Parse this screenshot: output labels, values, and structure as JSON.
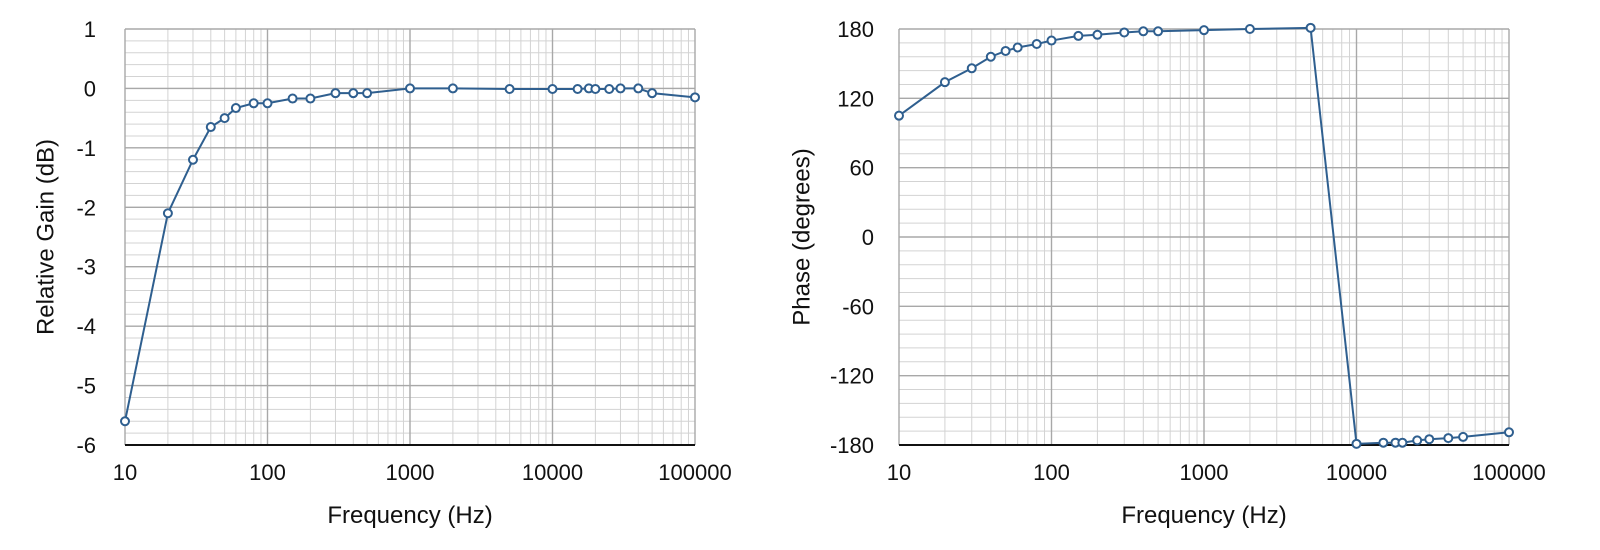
{
  "chart_data": [
    {
      "type": "line",
      "title": "",
      "xlabel": "Frequency (Hz)",
      "ylabel": "Relative Gain (dB)",
      "xscale": "log",
      "xlim": [
        10,
        100000
      ],
      "ylim": [
        -6,
        1
      ],
      "x_ticks": [
        10,
        100,
        1000,
        10000,
        100000
      ],
      "x_tick_labels": [
        "10",
        "100",
        "1000",
        "10000",
        "100000"
      ],
      "y_ticks": [
        1,
        0,
        -1,
        -2,
        -3,
        -4,
        -5,
        -6
      ],
      "y_tick_labels": [
        "1",
        "0",
        "-1",
        "-2",
        "-3",
        "-4",
        "-5",
        "-6"
      ],
      "grid": true,
      "legend": "none",
      "line_color": "#2f5f8f",
      "marker": "open-circle",
      "series": [
        {
          "x": [
            10,
            20,
            30,
            40,
            50,
            60,
            80,
            100,
            150,
            200,
            300,
            400,
            500,
            1000,
            2000,
            5000,
            10000,
            15000,
            18000,
            20000,
            25000,
            30000,
            40000,
            50000,
            100000
          ],
          "y": [
            -5.6,
            -2.1,
            -1.2,
            -0.65,
            -0.5,
            -0.33,
            -0.25,
            -0.25,
            -0.17,
            -0.17,
            -0.08,
            -0.08,
            -0.08,
            0.0,
            0.0,
            -0.01,
            -0.01,
            -0.01,
            0.0,
            -0.01,
            -0.01,
            0.0,
            0.0,
            -0.08,
            -0.15
          ]
        }
      ]
    },
    {
      "type": "line",
      "title": "",
      "xlabel": "Frequency (Hz)",
      "ylabel": "Phase (degrees)",
      "xscale": "log",
      "xlim": [
        10,
        100000
      ],
      "ylim": [
        -180,
        180
      ],
      "x_ticks": [
        10,
        100,
        1000,
        10000,
        100000
      ],
      "x_tick_labels": [
        "10",
        "100",
        "1000",
        "10000",
        "100000"
      ],
      "y_ticks": [
        180,
        120,
        60,
        0,
        -60,
        -120,
        -180
      ],
      "y_tick_labels": [
        "180",
        "120",
        "60",
        "0",
        "-60",
        "-120",
        "-180"
      ],
      "grid": true,
      "legend": "none",
      "line_color": "#2f5f8f",
      "marker": "open-circle",
      "series": [
        {
          "x": [
            10,
            20,
            30,
            40,
            50,
            60,
            80,
            100,
            150,
            200,
            300,
            400,
            500,
            1000,
            2000,
            5000,
            10000,
            15000,
            18000,
            20000,
            25000,
            30000,
            40000,
            50000,
            100000
          ],
          "y": [
            105,
            134,
            146,
            156,
            161,
            164,
            167,
            170,
            174,
            175,
            177,
            178,
            178,
            179,
            180,
            181,
            -179,
            -178,
            -178,
            -178,
            -176,
            -175,
            -174,
            -173,
            -169
          ]
        }
      ]
    }
  ]
}
